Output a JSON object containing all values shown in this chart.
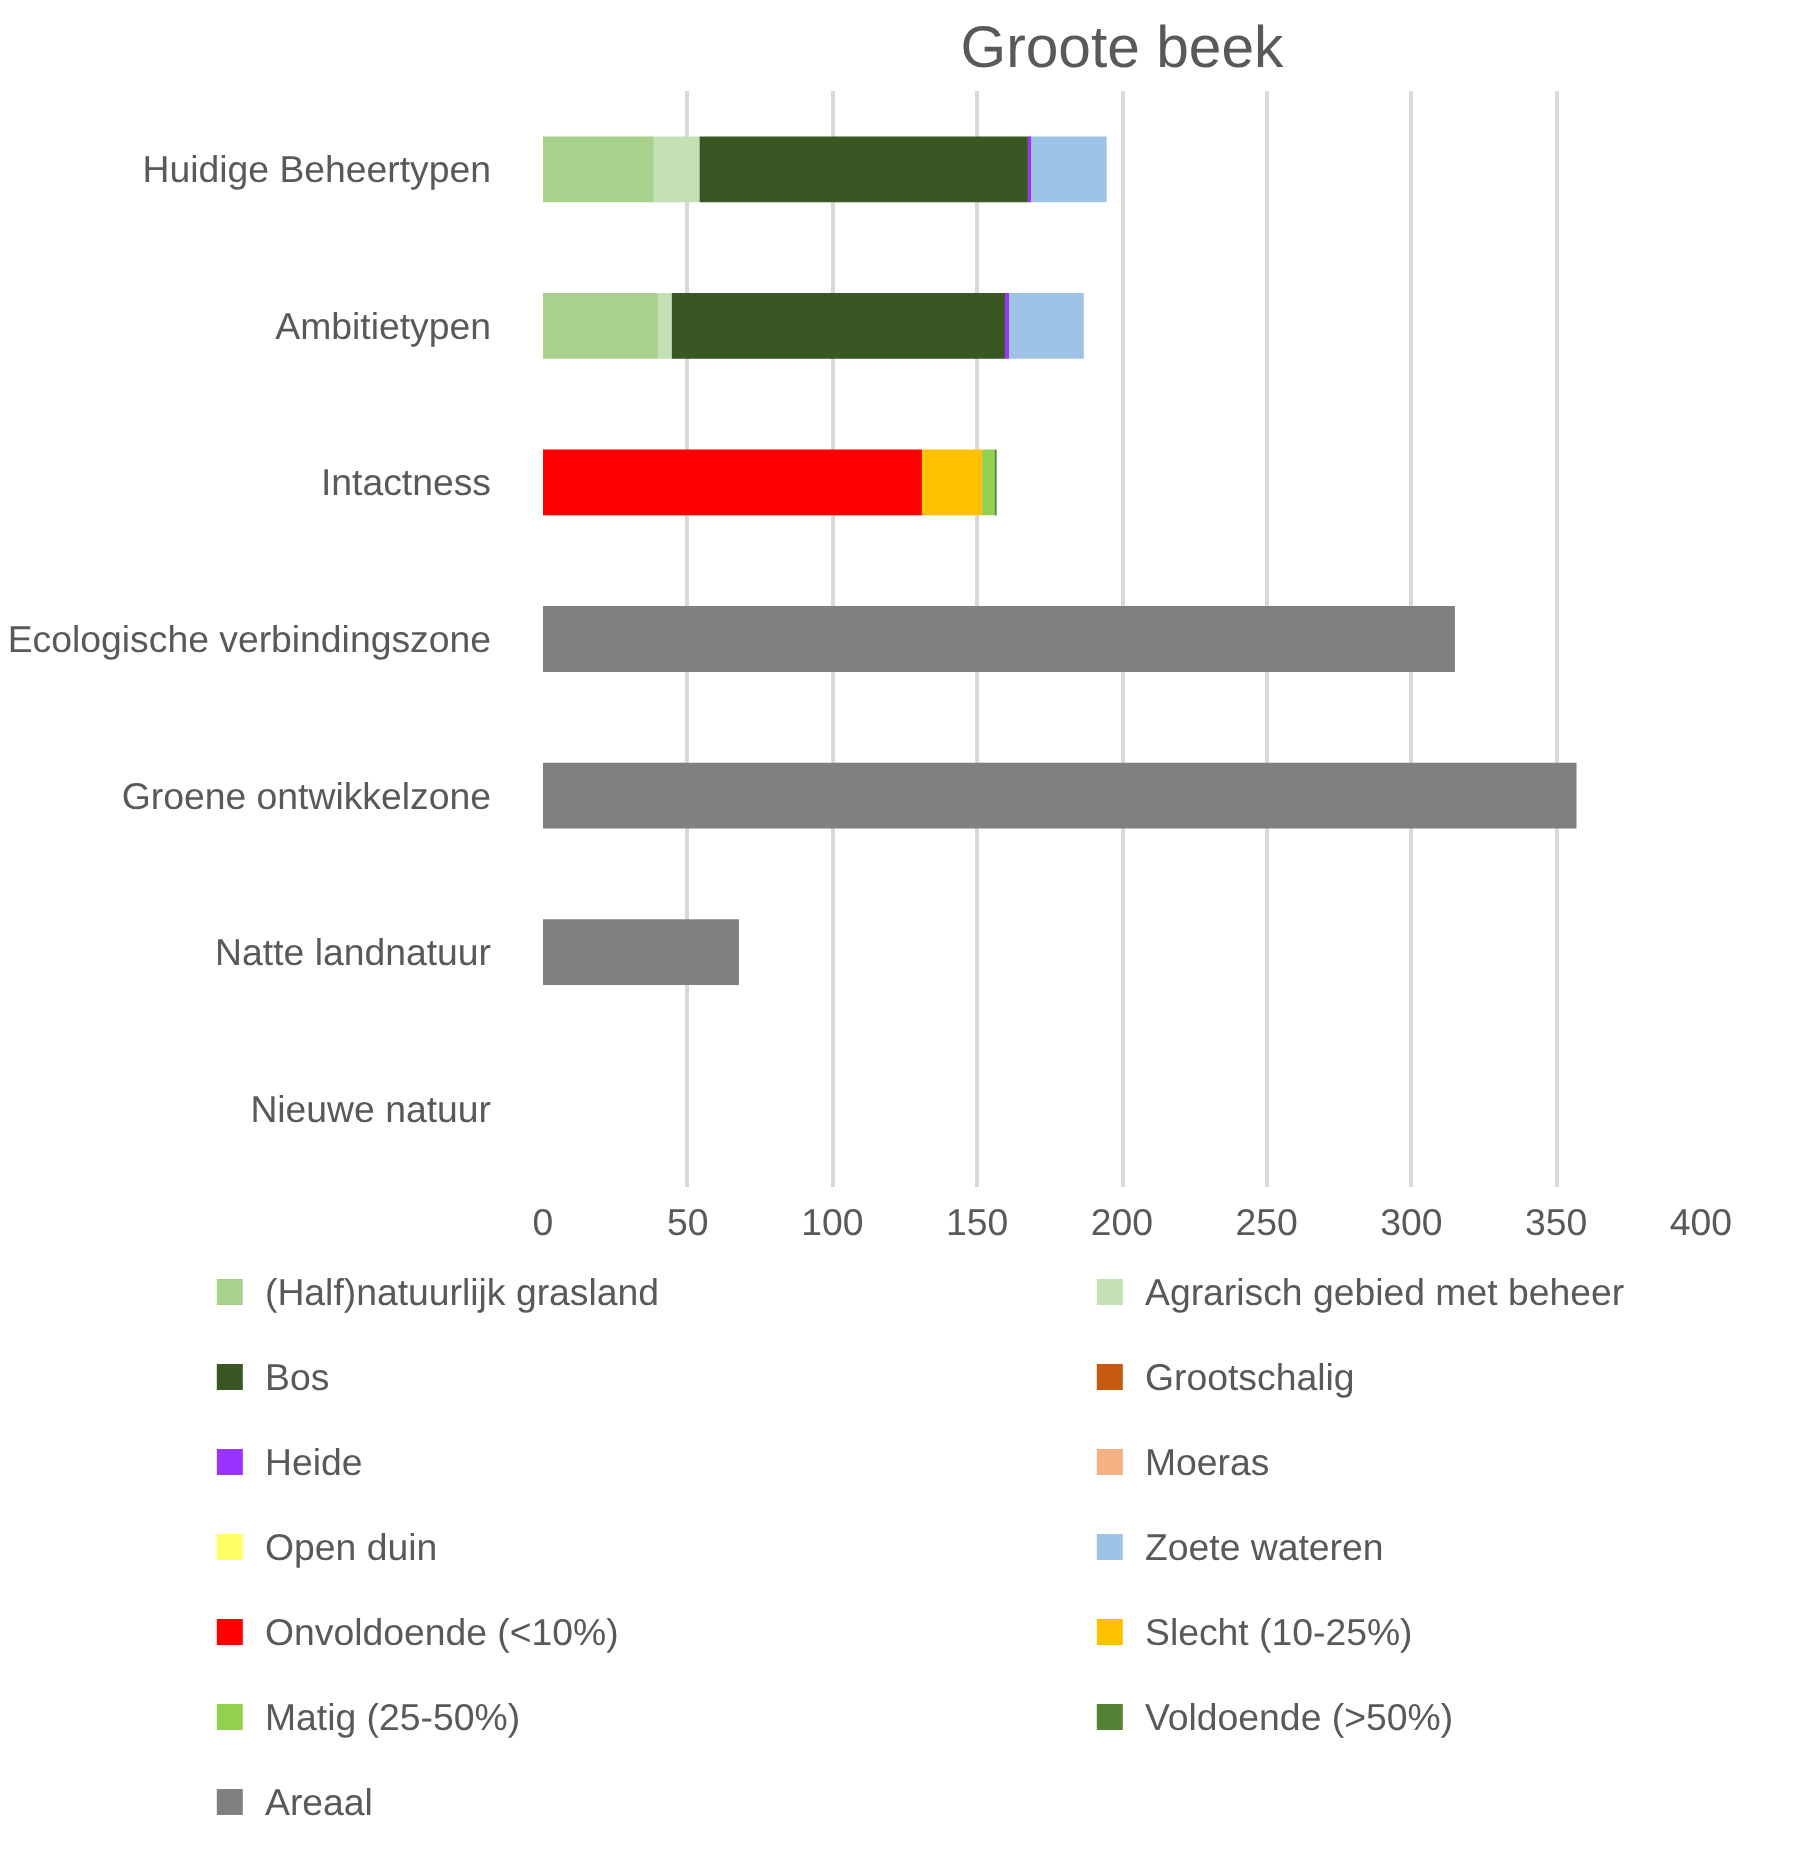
{
  "chart_data": {
    "type": "bar",
    "orientation": "horizontal",
    "stacked": true,
    "title": "Groote beek",
    "categories": [
      "Huidige Beheertypen",
      "Ambitietypen",
      "Intactness",
      "Ecologische verbindingszone",
      "Groene ontwikkelzone",
      "Natte landnatuur",
      "Nieuwe natuur"
    ],
    "series": [
      {
        "name": "(Half)natuurlijk grasland",
        "color": "#a9d18e",
        "values": [
          38.3,
          39.7,
          null,
          null,
          null,
          null,
          null
        ]
      },
      {
        "name": "Agrarisch gebied met beheer",
        "color": "#c5e0b4",
        "values": [
          15.8,
          4.8,
          null,
          null,
          null,
          null,
          null
        ]
      },
      {
        "name": "Bos",
        "color": "#385723",
        "values": [
          113.4,
          115.1,
          null,
          null,
          null,
          null,
          null
        ]
      },
      {
        "name": "Grootschalig",
        "color": "#c55a11",
        "values": [
          null,
          null,
          null,
          null,
          null,
          null,
          null
        ]
      },
      {
        "name": "Heide",
        "color": "#9933ff",
        "values": [
          1.2,
          1.4,
          null,
          null,
          null,
          null,
          null
        ]
      },
      {
        "name": "Moeras",
        "color": "#f4b183",
        "values": [
          null,
          null,
          null,
          null,
          null,
          null,
          null
        ]
      },
      {
        "name": "Open duin",
        "color": "#ffff66",
        "values": [
          null,
          null,
          null,
          null,
          null,
          null,
          null
        ]
      },
      {
        "name": "Zoete wateren",
        "color": "#9dc3e6",
        "values": [
          26.0,
          25.8,
          null,
          null,
          null,
          null,
          null
        ]
      },
      {
        "name": "Onvoldoende (<10%)",
        "color": "#ff0000",
        "values": [
          null,
          null,
          130.9,
          null,
          null,
          null,
          null
        ]
      },
      {
        "name": "Slecht (10-25%)",
        "color": "#ffc000",
        "values": [
          null,
          null,
          20.8,
          null,
          null,
          null,
          null
        ]
      },
      {
        "name": "Matig (25-50%)",
        "color": "#92d050",
        "values": [
          null,
          null,
          4.3,
          null,
          null,
          null,
          null
        ]
      },
      {
        "name": "Voldoende (>50%)",
        "color": "#548235",
        "values": [
          null,
          null,
          0.7,
          null,
          null,
          null,
          null
        ]
      },
      {
        "name": "Areaal",
        "color": "#808080",
        "values": [
          null,
          null,
          null,
          315,
          357,
          67.7,
          null
        ]
      }
    ],
    "xlim": [
      0,
      400
    ],
    "xticks": [
      0,
      50,
      100,
      150,
      200,
      250,
      300,
      350,
      400
    ],
    "grid": "x",
    "legend": "bottom"
  }
}
